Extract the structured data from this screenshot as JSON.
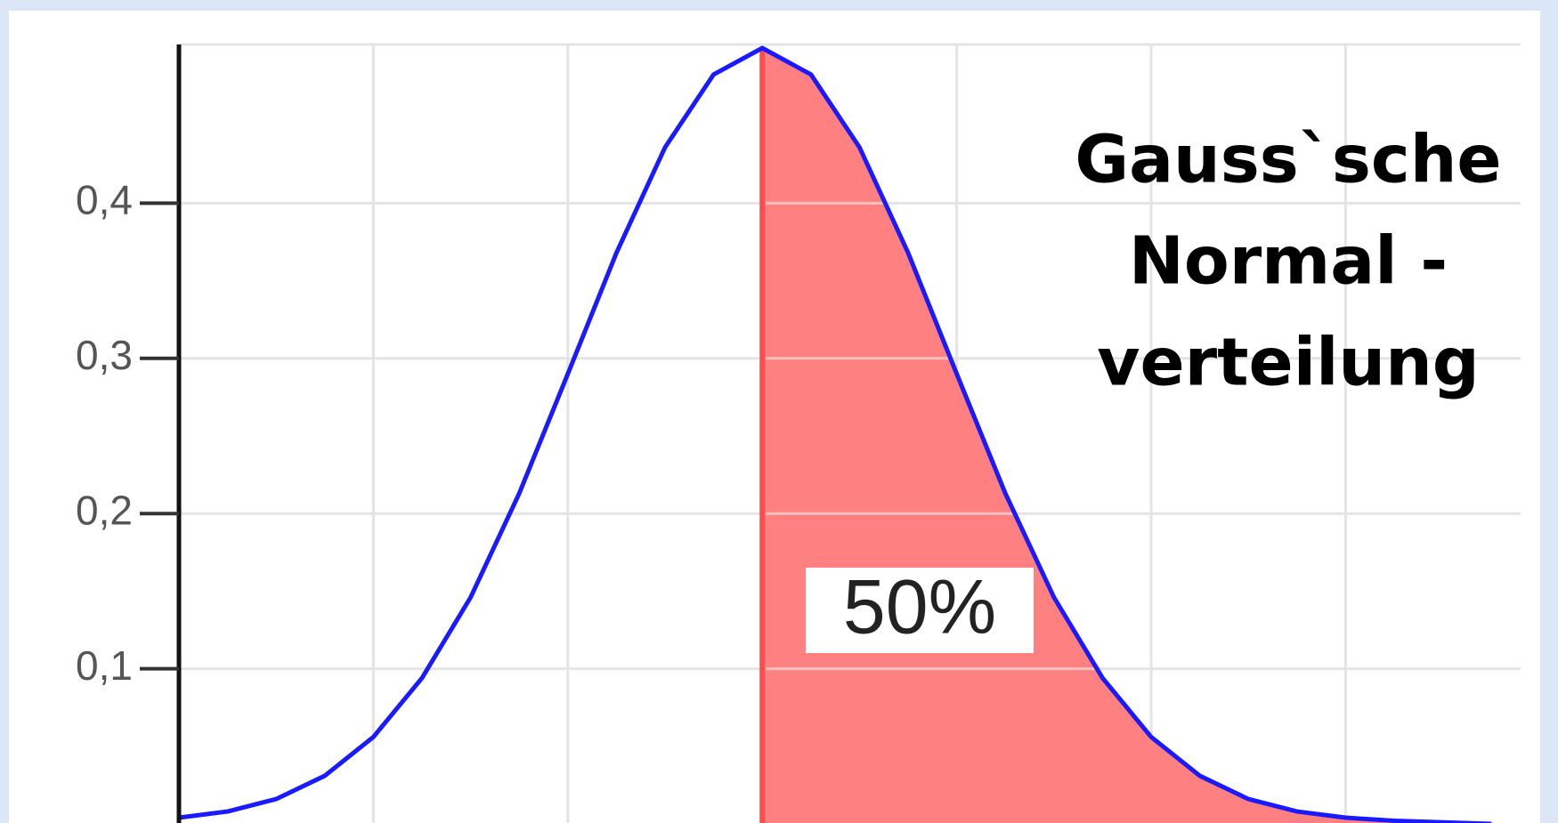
{
  "chart_data": {
    "type": "line",
    "title": [
      "Gauss`sche",
      "Normal -",
      "verteilung"
    ],
    "annotation": "50%",
    "x": [
      -3,
      -2.75,
      -2.5,
      -2.25,
      -2,
      -1.75,
      -1.5,
      -1.25,
      -1,
      -0.75,
      -0.5,
      -0.25,
      0,
      0.25,
      0.5,
      0.75,
      1,
      1.25,
      1.5,
      1.75,
      2,
      2.25,
      2.5,
      2.75,
      3,
      3.25,
      3.5,
      3.75
    ],
    "series": [
      {
        "color": "#1a1aff",
        "values": [
          0.004,
          0.008,
          0.016,
          0.031,
          0.056,
          0.094,
          0.146,
          0.213,
          0.29,
          0.368,
          0.436,
          0.483,
          0.5,
          0.483,
          0.436,
          0.368,
          0.29,
          0.213,
          0.146,
          0.094,
          0.056,
          0.031,
          0.016,
          0.008,
          0.004,
          0.002,
          0.001,
          0
        ]
      }
    ],
    "shade_from": 0,
    "shade_color": "#ff8080",
    "shade_edge_color": "#ff4d4d",
    "xlim": [
      -3,
      3.9
    ],
    "ylim": [
      0,
      0.5
    ],
    "xticks": [
      -2,
      -1,
      0,
      1,
      2,
      3
    ],
    "yticks": [
      {
        "value": 0.1,
        "label": "0,1"
      },
      {
        "value": 0.2,
        "label": "0,2"
      },
      {
        "value": 0.3,
        "label": "0,3"
      },
      {
        "value": 0.4,
        "label": "0,4"
      }
    ],
    "grid": true
  }
}
